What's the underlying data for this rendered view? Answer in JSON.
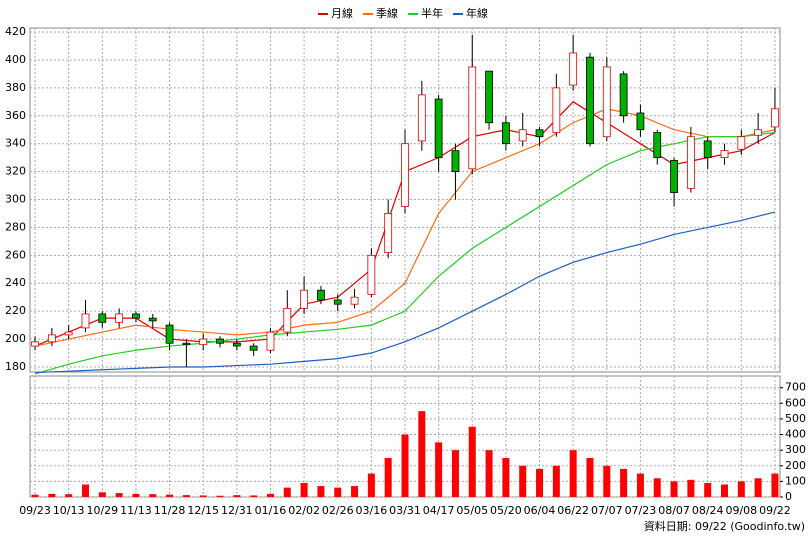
{
  "chart_data": {
    "type": "candlestick",
    "x": [
      0,
      0.5,
      1,
      1.5,
      2,
      2.5,
      3,
      3.5,
      4,
      4.5,
      5,
      5.5,
      6,
      6.5,
      7,
      7.5,
      8,
      8.5,
      9,
      9.5,
      10,
      10.5,
      11,
      11.5,
      12,
      12.5,
      13,
      13.5,
      14,
      14.5,
      15,
      15.5,
      16,
      16.5,
      17,
      17.5,
      18,
      18.5,
      19,
      19.5,
      20,
      20.5,
      21,
      21.5,
      22
    ],
    "open": [
      195,
      198,
      203,
      208,
      218,
      212,
      218,
      215,
      210,
      197,
      196,
      200,
      197,
      195,
      192,
      205,
      222,
      235,
      228,
      225,
      232,
      262,
      295,
      342,
      372,
      335,
      322,
      392,
      355,
      342,
      350,
      348,
      382,
      402,
      345,
      390,
      362,
      348,
      328,
      308,
      342,
      330,
      336,
      346,
      352
    ],
    "high": [
      202,
      208,
      210,
      228,
      220,
      222,
      220,
      218,
      212,
      200,
      204,
      202,
      200,
      197,
      208,
      235,
      245,
      238,
      232,
      236,
      265,
      300,
      350,
      385,
      375,
      340,
      418,
      392,
      360,
      362,
      352,
      390,
      418,
      405,
      402,
      392,
      368,
      350,
      330,
      352,
      345,
      340,
      350,
      362,
      380
    ],
    "low": [
      192,
      195,
      200,
      205,
      208,
      208,
      212,
      208,
      192,
      180,
      192,
      194,
      192,
      188,
      190,
      202,
      218,
      225,
      220,
      222,
      230,
      258,
      290,
      335,
      320,
      300,
      318,
      350,
      335,
      338,
      338,
      345,
      378,
      338,
      342,
      355,
      345,
      325,
      295,
      305,
      322,
      325,
      332,
      340,
      348
    ],
    "close": [
      198,
      203,
      205,
      218,
      212,
      218,
      215,
      213,
      197,
      196,
      200,
      197,
      195,
      192,
      205,
      222,
      235,
      228,
      225,
      230,
      260,
      290,
      340,
      375,
      330,
      320,
      395,
      355,
      340,
      350,
      345,
      380,
      405,
      340,
      395,
      360,
      350,
      330,
      305,
      345,
      330,
      335,
      345,
      350,
      365
    ],
    "up_color": "#e00000",
    "down_color": "#00b000",
    "line_x": [
      0,
      1,
      2,
      3,
      4,
      5,
      6,
      7,
      8,
      9,
      10,
      11,
      12,
      13,
      14,
      15,
      16,
      17,
      18,
      19,
      20,
      21,
      22
    ],
    "lines": [
      {
        "name": "月線",
        "color": "#e00000",
        "values": [
          195,
          205,
          215,
          215,
          200,
          198,
          198,
          200,
          225,
          230,
          250,
          320,
          330,
          345,
          350,
          345,
          370,
          355,
          340,
          325,
          330,
          335,
          348
        ]
      },
      {
        "name": "季線",
        "color": "#ff6a1a",
        "values": [
          195,
          200,
          205,
          210,
          207,
          205,
          203,
          205,
          210,
          212,
          220,
          240,
          290,
          320,
          330,
          340,
          355,
          365,
          360,
          350,
          345,
          345,
          350
        ]
      },
      {
        "name": "半年",
        "color": "#22cc22",
        "values": [
          175,
          182,
          188,
          192,
          195,
          197,
          200,
          203,
          205,
          207,
          210,
          220,
          245,
          265,
          280,
          295,
          310,
          325,
          335,
          340,
          345,
          345,
          348
        ]
      },
      {
        "name": "年線",
        "color": "#1f5fbf",
        "values": [
          176,
          177,
          178,
          179,
          180,
          180,
          181,
          182,
          184,
          186,
          190,
          198,
          208,
          220,
          232,
          245,
          255,
          262,
          268,
          275,
          280,
          285,
          291
        ]
      }
    ],
    "xlim": [
      -0.15,
      22.15
    ],
    "xticks": [
      {
        "value": 0,
        "label": "09/23"
      },
      {
        "value": 1,
        "label": "10/13"
      },
      {
        "value": 2,
        "label": "10/29"
      },
      {
        "value": 3,
        "label": "11/13"
      },
      {
        "value": 4,
        "label": "11/28"
      },
      {
        "value": 5,
        "label": "12/15"
      },
      {
        "value": 6,
        "label": "12/31"
      },
      {
        "value": 7,
        "label": "01/16"
      },
      {
        "value": 8,
        "label": "02/02"
      },
      {
        "value": 9,
        "label": "02/26"
      },
      {
        "value": 10,
        "label": "03/16"
      },
      {
        "value": 11,
        "label": "03/31"
      },
      {
        "value": 12,
        "label": "04/17"
      },
      {
        "value": 13,
        "label": "05/05"
      },
      {
        "value": 14,
        "label": "05/20"
      },
      {
        "value": 15,
        "label": "06/04"
      },
      {
        "value": 16,
        "label": "06/22"
      },
      {
        "value": 17,
        "label": "07/07"
      },
      {
        "value": 18,
        "label": "07/23"
      },
      {
        "value": 19,
        "label": "08/07"
      },
      {
        "value": 20,
        "label": "08/24"
      },
      {
        "value": 21,
        "label": "09/08"
      },
      {
        "value": 22,
        "label": "09/22"
      }
    ],
    "ylim": [
      176.4,
      422.9
    ],
    "yticks": [
      180,
      200,
      220,
      240,
      260,
      280,
      300,
      320,
      340,
      360,
      380,
      400,
      420
    ],
    "grid": true,
    "volume": {
      "color": "#ff0000",
      "values": [
        15,
        20,
        18,
        80,
        30,
        25,
        20,
        18,
        15,
        12,
        10,
        8,
        12,
        10,
        20,
        60,
        90,
        70,
        60,
        70,
        150,
        250,
        400,
        550,
        350,
        300,
        450,
        300,
        250,
        200,
        180,
        200,
        300,
        250,
        200,
        180,
        150,
        120,
        100,
        110,
        90,
        80,
        100,
        120,
        150
      ],
      "ylim": [
        0,
        775
      ],
      "yticks": [
        0,
        100,
        200,
        300,
        400,
        500,
        600,
        700
      ]
    },
    "footnote": "資料日期: 09/22 (Goodinfo.tw)"
  }
}
